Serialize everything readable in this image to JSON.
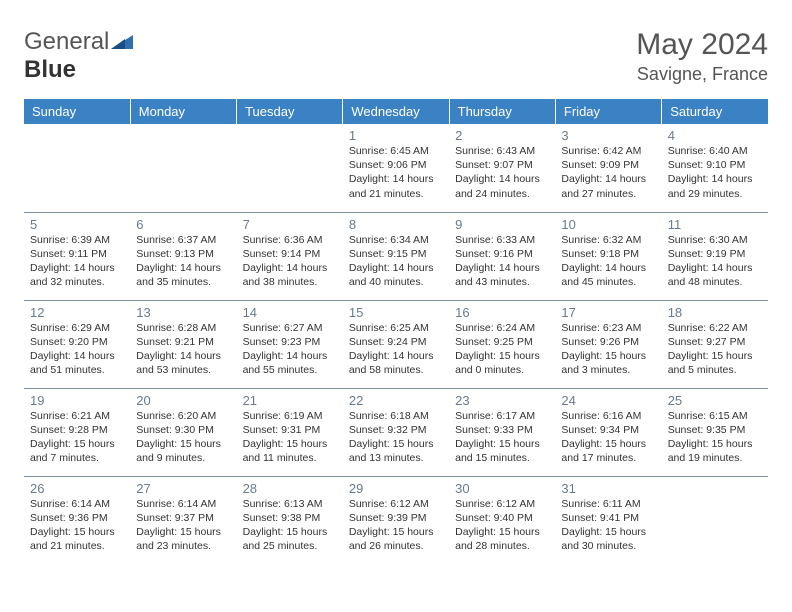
{
  "brand": {
    "part1": "General",
    "part2": "Blue"
  },
  "title": "May 2024",
  "location": "Savigne, France",
  "colors": {
    "header_bg": "#3b82c4",
    "header_text": "#ffffff",
    "row_border": "#7a92a8",
    "daynum": "#6a7a8a",
    "body_text": "#333333",
    "title_text": "#555555",
    "logo_accent": "#2f6fb0"
  },
  "weekdays": [
    "Sunday",
    "Monday",
    "Tuesday",
    "Wednesday",
    "Thursday",
    "Friday",
    "Saturday"
  ],
  "cells": [
    {
      "n": "",
      "sr": "",
      "ss": "",
      "dl": ""
    },
    {
      "n": "",
      "sr": "",
      "ss": "",
      "dl": ""
    },
    {
      "n": "",
      "sr": "",
      "ss": "",
      "dl": ""
    },
    {
      "n": "1",
      "sr": "Sunrise: 6:45 AM",
      "ss": "Sunset: 9:06 PM",
      "dl": "Daylight: 14 hours and 21 minutes."
    },
    {
      "n": "2",
      "sr": "Sunrise: 6:43 AM",
      "ss": "Sunset: 9:07 PM",
      "dl": "Daylight: 14 hours and 24 minutes."
    },
    {
      "n": "3",
      "sr": "Sunrise: 6:42 AM",
      "ss": "Sunset: 9:09 PM",
      "dl": "Daylight: 14 hours and 27 minutes."
    },
    {
      "n": "4",
      "sr": "Sunrise: 6:40 AM",
      "ss": "Sunset: 9:10 PM",
      "dl": "Daylight: 14 hours and 29 minutes."
    },
    {
      "n": "5",
      "sr": "Sunrise: 6:39 AM",
      "ss": "Sunset: 9:11 PM",
      "dl": "Daylight: 14 hours and 32 minutes."
    },
    {
      "n": "6",
      "sr": "Sunrise: 6:37 AM",
      "ss": "Sunset: 9:13 PM",
      "dl": "Daylight: 14 hours and 35 minutes."
    },
    {
      "n": "7",
      "sr": "Sunrise: 6:36 AM",
      "ss": "Sunset: 9:14 PM",
      "dl": "Daylight: 14 hours and 38 minutes."
    },
    {
      "n": "8",
      "sr": "Sunrise: 6:34 AM",
      "ss": "Sunset: 9:15 PM",
      "dl": "Daylight: 14 hours and 40 minutes."
    },
    {
      "n": "9",
      "sr": "Sunrise: 6:33 AM",
      "ss": "Sunset: 9:16 PM",
      "dl": "Daylight: 14 hours and 43 minutes."
    },
    {
      "n": "10",
      "sr": "Sunrise: 6:32 AM",
      "ss": "Sunset: 9:18 PM",
      "dl": "Daylight: 14 hours and 45 minutes."
    },
    {
      "n": "11",
      "sr": "Sunrise: 6:30 AM",
      "ss": "Sunset: 9:19 PM",
      "dl": "Daylight: 14 hours and 48 minutes."
    },
    {
      "n": "12",
      "sr": "Sunrise: 6:29 AM",
      "ss": "Sunset: 9:20 PM",
      "dl": "Daylight: 14 hours and 51 minutes."
    },
    {
      "n": "13",
      "sr": "Sunrise: 6:28 AM",
      "ss": "Sunset: 9:21 PM",
      "dl": "Daylight: 14 hours and 53 minutes."
    },
    {
      "n": "14",
      "sr": "Sunrise: 6:27 AM",
      "ss": "Sunset: 9:23 PM",
      "dl": "Daylight: 14 hours and 55 minutes."
    },
    {
      "n": "15",
      "sr": "Sunrise: 6:25 AM",
      "ss": "Sunset: 9:24 PM",
      "dl": "Daylight: 14 hours and 58 minutes."
    },
    {
      "n": "16",
      "sr": "Sunrise: 6:24 AM",
      "ss": "Sunset: 9:25 PM",
      "dl": "Daylight: 15 hours and 0 minutes."
    },
    {
      "n": "17",
      "sr": "Sunrise: 6:23 AM",
      "ss": "Sunset: 9:26 PM",
      "dl": "Daylight: 15 hours and 3 minutes."
    },
    {
      "n": "18",
      "sr": "Sunrise: 6:22 AM",
      "ss": "Sunset: 9:27 PM",
      "dl": "Daylight: 15 hours and 5 minutes."
    },
    {
      "n": "19",
      "sr": "Sunrise: 6:21 AM",
      "ss": "Sunset: 9:28 PM",
      "dl": "Daylight: 15 hours and 7 minutes."
    },
    {
      "n": "20",
      "sr": "Sunrise: 6:20 AM",
      "ss": "Sunset: 9:30 PM",
      "dl": "Daylight: 15 hours and 9 minutes."
    },
    {
      "n": "21",
      "sr": "Sunrise: 6:19 AM",
      "ss": "Sunset: 9:31 PM",
      "dl": "Daylight: 15 hours and 11 minutes."
    },
    {
      "n": "22",
      "sr": "Sunrise: 6:18 AM",
      "ss": "Sunset: 9:32 PM",
      "dl": "Daylight: 15 hours and 13 minutes."
    },
    {
      "n": "23",
      "sr": "Sunrise: 6:17 AM",
      "ss": "Sunset: 9:33 PM",
      "dl": "Daylight: 15 hours and 15 minutes."
    },
    {
      "n": "24",
      "sr": "Sunrise: 6:16 AM",
      "ss": "Sunset: 9:34 PM",
      "dl": "Daylight: 15 hours and 17 minutes."
    },
    {
      "n": "25",
      "sr": "Sunrise: 6:15 AM",
      "ss": "Sunset: 9:35 PM",
      "dl": "Daylight: 15 hours and 19 minutes."
    },
    {
      "n": "26",
      "sr": "Sunrise: 6:14 AM",
      "ss": "Sunset: 9:36 PM",
      "dl": "Daylight: 15 hours and 21 minutes."
    },
    {
      "n": "27",
      "sr": "Sunrise: 6:14 AM",
      "ss": "Sunset: 9:37 PM",
      "dl": "Daylight: 15 hours and 23 minutes."
    },
    {
      "n": "28",
      "sr": "Sunrise: 6:13 AM",
      "ss": "Sunset: 9:38 PM",
      "dl": "Daylight: 15 hours and 25 minutes."
    },
    {
      "n": "29",
      "sr": "Sunrise: 6:12 AM",
      "ss": "Sunset: 9:39 PM",
      "dl": "Daylight: 15 hours and 26 minutes."
    },
    {
      "n": "30",
      "sr": "Sunrise: 6:12 AM",
      "ss": "Sunset: 9:40 PM",
      "dl": "Daylight: 15 hours and 28 minutes."
    },
    {
      "n": "31",
      "sr": "Sunrise: 6:11 AM",
      "ss": "Sunset: 9:41 PM",
      "dl": "Daylight: 15 hours and 30 minutes."
    },
    {
      "n": "",
      "sr": "",
      "ss": "",
      "dl": ""
    }
  ]
}
